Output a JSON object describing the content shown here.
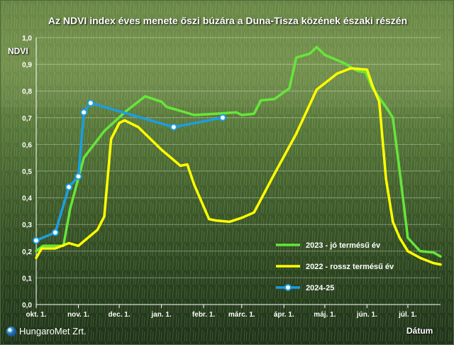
{
  "colors": {
    "good_year": "#66e63a",
    "bad_year": "#ffff00",
    "current": "#1a9fe0",
    "text": "#ffffff"
  },
  "branding": {
    "logo_text": "HungaroMet Zrt.",
    "logo_icon": "globe-icon"
  },
  "chart_data": {
    "type": "line",
    "title": "Az NDVI index éves menete őszi búzára a Duna-Tisza közének északi részén",
    "xlabel": "Dátum",
    "ylabel": "NDVI",
    "ylim": [
      0.0,
      1.0
    ],
    "yticks": [
      "0,0",
      "0,1",
      "0,2",
      "0,3",
      "0,4",
      "0,5",
      "0,6",
      "0,7",
      "0,8",
      "0,9",
      "1,0"
    ],
    "xticks": [
      "okt. 1.",
      "nov. 1.",
      "dec. 1.",
      "jan. 1.",
      "febr. 1.",
      "márc. 1.",
      "ápr. 1.",
      "máj. 1.",
      "jún. 1.",
      "júl. 1."
    ],
    "xlim": [
      "okt. 1.",
      "júl. 25."
    ],
    "grid": true,
    "legend_position": "bottom-right",
    "series": [
      {
        "name": "2023 - jó termésű év",
        "color": "#66e63a",
        "marker": "none",
        "x": [
          "okt. 1.",
          "okt. 6.",
          "okt. 11.",
          "okt. 21.",
          "okt. 26.",
          "nov. 5.",
          "nov. 20.",
          "dec. 5.",
          "dec. 20.",
          "jan. 1.",
          "jan. 5.",
          "jan. 12.",
          "jan. 25.",
          "febr. 10.",
          "febr. 25.",
          "márc. 1.",
          "márc. 10.",
          "márc. 15.",
          "márc. 25.",
          "ápr. 5.",
          "ápr. 10.",
          "ápr. 20.",
          "ápr. 25.",
          "máj. 1.",
          "máj. 15.",
          "máj. 25.",
          "máj. 31.",
          "jún. 5.",
          "jún. 15.",
          "jún. 20.",
          "jún. 25.",
          "júl. 1.",
          "júl. 10.",
          "júl. 20.",
          "júl. 25."
        ],
        "values": [
          0.2,
          0.22,
          0.22,
          0.22,
          0.36,
          0.55,
          0.65,
          0.72,
          0.78,
          0.76,
          0.74,
          0.73,
          0.71,
          0.715,
          0.72,
          0.71,
          0.715,
          0.765,
          0.77,
          0.81,
          0.925,
          0.94,
          0.965,
          0.935,
          0.905,
          0.875,
          0.87,
          0.81,
          0.74,
          0.7,
          0.5,
          0.25,
          0.2,
          0.195,
          0.18
        ]
      },
      {
        "name": "2022 - rossz termésű év",
        "color": "#ffff00",
        "marker": "none",
        "x": [
          "okt. 1.",
          "okt. 5.",
          "okt. 15.",
          "okt. 25.",
          "nov. 1.",
          "nov. 15.",
          "nov. 20.",
          "nov. 25.",
          "dec. 1.",
          "dec. 5.",
          "dec. 15.",
          "jan. 1.",
          "jan. 15.",
          "jan. 20.",
          "jan. 25.",
          "febr. 5.",
          "febr. 10.",
          "febr. 20.",
          "márc. 1.",
          "márc. 10.",
          "márc. 25.",
          "ápr. 10.",
          "ápr. 25.",
          "máj. 10.",
          "máj. 15.",
          "máj. 20.",
          "jún. 1.",
          "jún. 5.",
          "jún. 10.",
          "jún. 15.",
          "jún. 20.",
          "jún. 25.",
          "júl. 1.",
          "júl. 10.",
          "júl. 20.",
          "júl. 25."
        ],
        "values": [
          0.175,
          0.21,
          0.21,
          0.23,
          0.22,
          0.28,
          0.33,
          0.62,
          0.68,
          0.69,
          0.665,
          0.58,
          0.52,
          0.525,
          0.45,
          0.32,
          0.315,
          0.31,
          0.325,
          0.345,
          0.49,
          0.64,
          0.805,
          0.865,
          0.875,
          0.885,
          0.88,
          0.82,
          0.76,
          0.47,
          0.31,
          0.25,
          0.2,
          0.175,
          0.155,
          0.15
        ]
      },
      {
        "name": "2024-25",
        "color": "#1a9fe0",
        "marker": "circle",
        "x": [
          "okt. 1.",
          "okt. 15.",
          "okt. 25.",
          "nov. 1.",
          "nov. 5.",
          "nov. 10.",
          "jan. 10.",
          "febr. 15."
        ],
        "values": [
          0.24,
          0.27,
          0.44,
          0.48,
          0.72,
          0.755,
          0.665,
          0.7
        ]
      }
    ]
  }
}
